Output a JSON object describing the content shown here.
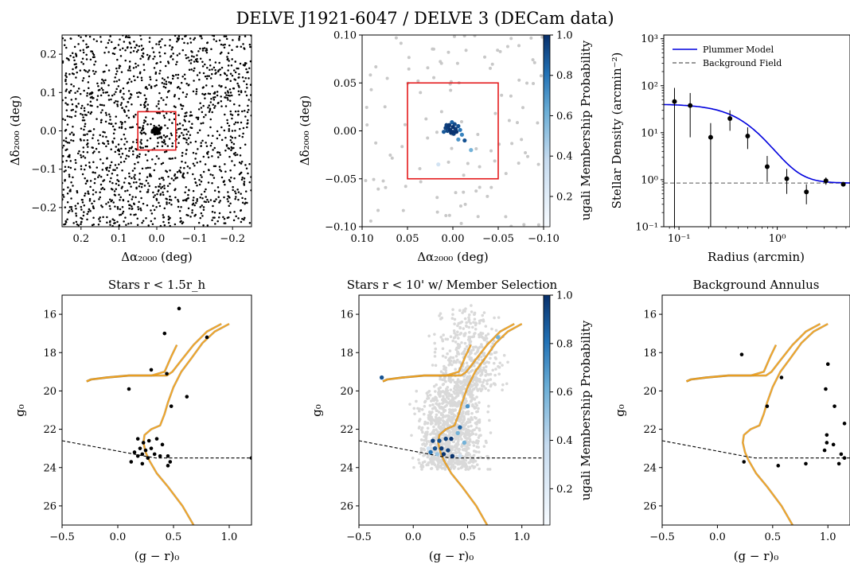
{
  "figure": {
    "title": "DELVE J1921-6047 / DELVE 3 (DECam data)",
    "colors": {
      "axis": "#000000",
      "member_box": "#e41a1c",
      "isochrone": "#f5a623",
      "isochrone_edge": "#8a5a00",
      "plummer": "#0000dd",
      "background_line": "#777777",
      "field_gray": "#c8c8c8",
      "cmap_low": "#f7fbff",
      "cmap_high": "#08306b"
    }
  },
  "chart_data": [
    {
      "id": "spatial_all",
      "type": "scatter",
      "title": "",
      "xlabel": "Δα₂₀₀₀ (deg)",
      "ylabel": "Δδ₂₀₀₀ (deg)",
      "xlim": [
        0.25,
        -0.25
      ],
      "ylim": [
        -0.25,
        0.25
      ],
      "xticks": [
        0.2,
        0.1,
        0.0,
        -0.1,
        -0.2
      ],
      "xticklabels": [
        "0.2",
        "0.1",
        "0.0",
        "−0.1",
        "−0.2"
      ],
      "yticks": [
        -0.2,
        -0.1,
        0.0,
        0.1,
        0.2
      ],
      "yticklabels": [
        "−0.2",
        "−0.1",
        "0.0",
        "0.1",
        "0.2"
      ],
      "box": [
        0.05,
        -0.05,
        -0.05,
        0.05
      ],
      "field_points": 1600,
      "cluster_points": [
        [
          0.0,
          0.0
        ],
        [
          0.004,
          0.003
        ],
        [
          -0.003,
          0.005
        ],
        [
          0.006,
          -0.004
        ],
        [
          -0.005,
          -0.002
        ],
        [
          0.002,
          0.008
        ],
        [
          -0.008,
          0.004
        ],
        [
          0.009,
          0.002
        ],
        [
          -0.002,
          -0.007
        ],
        [
          0.003,
          -0.001
        ],
        [
          0.0,
          0.004
        ],
        [
          -0.004,
          0.0
        ],
        [
          0.007,
          0.006
        ],
        [
          0.005,
          -0.008
        ],
        [
          -0.007,
          -0.006
        ],
        [
          0.012,
          -0.003
        ],
        [
          -0.011,
          0.008
        ]
      ]
    },
    {
      "id": "spatial_members",
      "type": "scatter",
      "title": "",
      "xlabel": "Δα₂₀₀₀ (deg)",
      "ylabel": "Δδ₂₀₀₀ (deg)",
      "xlim": [
        0.1,
        -0.1
      ],
      "ylim": [
        -0.1,
        0.1
      ],
      "xticks": [
        0.1,
        0.05,
        0.0,
        -0.05,
        -0.1
      ],
      "xticklabels": [
        "0.10",
        "0.05",
        "0.00",
        "−0.05",
        "−0.10"
      ],
      "yticks": [
        -0.1,
        -0.05,
        0.0,
        0.05,
        0.1
      ],
      "yticklabels": [
        "−0.10",
        "−0.05",
        "0.00",
        "0.05",
        "0.10"
      ],
      "box": [
        0.05,
        -0.05,
        -0.05,
        0.05
      ],
      "background_points": 110,
      "members": [
        {
          "x": 0.008,
          "y": 0.003,
          "p": 0.95
        },
        {
          "x": 0.004,
          "y": 0.006,
          "p": 0.98
        },
        {
          "x": 0.0,
          "y": 0.004,
          "p": 0.99
        },
        {
          "x": -0.003,
          "y": 0.002,
          "p": 0.97
        },
        {
          "x": -0.006,
          "y": 0.005,
          "p": 0.9
        },
        {
          "x": 0.006,
          "y": 0.0,
          "p": 0.93
        },
        {
          "x": 0.002,
          "y": -0.002,
          "p": 0.99
        },
        {
          "x": -0.001,
          "y": -0.003,
          "p": 0.96
        },
        {
          "x": 0.01,
          "y": -0.001,
          "p": 0.88
        },
        {
          "x": -0.004,
          "y": -0.001,
          "p": 0.99
        },
        {
          "x": 0.001,
          "y": 0.009,
          "p": 0.85
        },
        {
          "x": 0.005,
          "y": 0.004,
          "p": 0.97
        },
        {
          "x": -0.002,
          "y": 0.007,
          "p": 0.92
        },
        {
          "x": 0.003,
          "y": 0.001,
          "p": 0.99
        },
        {
          "x": -0.008,
          "y": 0.001,
          "p": 0.8
        },
        {
          "x": 0.007,
          "y": 0.006,
          "p": 0.95
        },
        {
          "x": -0.01,
          "y": -0.004,
          "p": 0.75
        },
        {
          "x": -0.006,
          "y": -0.009,
          "p": 0.7
        },
        {
          "x": -0.02,
          "y": -0.02,
          "p": 0.6
        },
        {
          "x": 0.016,
          "y": -0.035,
          "p": 0.3
        },
        {
          "x": 0.0,
          "y": -0.001,
          "p": 0.99
        },
        {
          "x": -0.013,
          "y": -0.01,
          "p": 0.9
        }
      ],
      "colorbar": {
        "label": "ugali Membership Probability",
        "range": [
          0.05,
          1.0
        ],
        "ticks": [
          0.2,
          0.4,
          0.6,
          0.8,
          1.0
        ],
        "ticklabels": [
          "0.2",
          "0.4",
          "0.6",
          "0.8",
          "1.0"
        ]
      }
    },
    {
      "id": "radial_profile",
      "type": "line",
      "title": "",
      "xlabel": "Radius (arcmin)",
      "ylabel": "Stellar Density (arcmin⁻²)",
      "xscale": "log",
      "yscale": "log",
      "xlim": [
        0.07,
        5.5
      ],
      "ylim": [
        0.1,
        1200
      ],
      "xticks": [
        0.1,
        1.0
      ],
      "xticklabels": [
        "10⁻¹",
        "10⁰"
      ],
      "yticks": [
        0.1,
        1,
        10,
        100,
        1000
      ],
      "yticklabels": [
        "10⁻¹",
        "10⁰",
        "10¹",
        "10²",
        "10³"
      ],
      "legend": {
        "placement": "top-left",
        "entries": [
          "Plummer Model",
          "Background Field"
        ]
      },
      "plummer": {
        "background": 0.85,
        "central": 40,
        "half_light_radius": 0.6
      },
      "points": [
        {
          "r": 0.09,
          "d": 46,
          "lo": 0.1,
          "hi": 90
        },
        {
          "r": 0.13,
          "d": 38,
          "lo": 8,
          "hi": 70
        },
        {
          "r": 0.21,
          "d": 8,
          "lo": 0.1,
          "hi": 16
        },
        {
          "r": 0.33,
          "d": 20,
          "lo": 11,
          "hi": 30
        },
        {
          "r": 0.5,
          "d": 8.5,
          "lo": 4.5,
          "hi": 13
        },
        {
          "r": 0.79,
          "d": 1.9,
          "lo": 0.9,
          "hi": 3.2
        },
        {
          "r": 1.25,
          "d": 1.05,
          "lo": 0.5,
          "hi": 1.7
        },
        {
          "r": 1.98,
          "d": 0.55,
          "lo": 0.3,
          "hi": 0.8
        },
        {
          "r": 3.13,
          "d": 0.95,
          "lo": 0.78,
          "hi": 1.12
        },
        {
          "r": 4.7,
          "d": 0.8,
          "lo": 0.72,
          "hi": 0.88
        }
      ]
    },
    {
      "id": "cmd_inner",
      "type": "scatter",
      "title": "Stars r < 1.5r_h",
      "xlabel": "(g − r)₀",
      "ylabel": "g₀",
      "xlim": [
        -0.5,
        1.2
      ],
      "ylim": [
        27,
        15
      ],
      "xticks": [
        -0.5,
        0.0,
        0.5,
        1.0
      ],
      "xticklabels": [
        "−0.5",
        "0.0",
        "0.5",
        "1.0"
      ],
      "yticks": [
        16,
        18,
        20,
        22,
        24,
        26
      ],
      "yticklabels": [
        "16",
        "18",
        "20",
        "22",
        "24",
        "26"
      ],
      "stars": [
        [
          0.55,
          15.7
        ],
        [
          0.42,
          17.0
        ],
        [
          0.8,
          17.2
        ],
        [
          0.3,
          18.9
        ],
        [
          0.44,
          19.1
        ],
        [
          0.1,
          19.9
        ],
        [
          0.62,
          20.3
        ],
        [
          0.48,
          20.8
        ],
        [
          0.18,
          22.5
        ],
        [
          0.23,
          22.7
        ],
        [
          0.28,
          22.6
        ],
        [
          0.35,
          22.5
        ],
        [
          0.4,
          22.8
        ],
        [
          0.2,
          23.0
        ],
        [
          0.25,
          23.1
        ],
        [
          0.3,
          23.0
        ],
        [
          0.15,
          23.2
        ],
        [
          0.22,
          23.3
        ],
        [
          0.33,
          23.3
        ],
        [
          0.38,
          23.4
        ],
        [
          0.45,
          23.4
        ],
        [
          0.27,
          23.5
        ],
        [
          0.12,
          23.7
        ],
        [
          0.22,
          23.8
        ],
        [
          0.47,
          23.7
        ],
        [
          0.45,
          23.9
        ],
        [
          1.2,
          23.5
        ],
        [
          0.18,
          23.4
        ]
      ]
    },
    {
      "id": "cmd_members",
      "type": "scatter",
      "title": "Stars r < 10' w/ Member Selection",
      "xlabel": "(g − r)₀",
      "ylabel": "g₀",
      "xlim": [
        -0.5,
        1.2
      ],
      "ylim": [
        27,
        15
      ],
      "xticks": [
        -0.5,
        0.0,
        0.5,
        1.0
      ],
      "xticklabels": [
        "−0.5",
        "0.0",
        "0.5",
        "1.0"
      ],
      "yticks": [
        16,
        18,
        20,
        22,
        24,
        26
      ],
      "yticklabels": [
        "16",
        "18",
        "20",
        "22",
        "24",
        "26"
      ],
      "background_points": 1400,
      "members": [
        {
          "x": -0.29,
          "y": 19.3,
          "p": 0.9
        },
        {
          "x": 0.78,
          "y": 17.2,
          "p": 0.6
        },
        {
          "x": 0.5,
          "y": 20.8,
          "p": 0.7
        },
        {
          "x": 0.43,
          "y": 21.9,
          "p": 0.85
        },
        {
          "x": 0.41,
          "y": 22.2,
          "p": 0.6
        },
        {
          "x": 0.18,
          "y": 22.6,
          "p": 0.95
        },
        {
          "x": 0.24,
          "y": 22.6,
          "p": 0.9
        },
        {
          "x": 0.3,
          "y": 22.5,
          "p": 0.95
        },
        {
          "x": 0.35,
          "y": 22.5,
          "p": 0.98
        },
        {
          "x": 0.47,
          "y": 22.7,
          "p": 0.6
        },
        {
          "x": 0.2,
          "y": 23.0,
          "p": 0.9
        },
        {
          "x": 0.26,
          "y": 23.0,
          "p": 0.97
        },
        {
          "x": 0.32,
          "y": 23.1,
          "p": 0.95
        },
        {
          "x": 0.16,
          "y": 23.2,
          "p": 0.8
        },
        {
          "x": 0.22,
          "y": 23.3,
          "p": 0.5
        },
        {
          "x": 0.28,
          "y": 23.3,
          "p": 0.99
        },
        {
          "x": 0.36,
          "y": 23.4,
          "p": 0.99
        },
        {
          "x": 0.14,
          "y": 23.0,
          "p": 0.3
        },
        {
          "x": 0.43,
          "y": 23.4,
          "p": 0.35
        }
      ],
      "colorbar": {
        "label": "ugali Membership Probability",
        "range": [
          0.05,
          1.0
        ],
        "ticks": [
          0.2,
          0.4,
          0.6,
          0.8,
          1.0
        ],
        "ticklabels": [
          "0.2",
          "0.4",
          "0.6",
          "0.8",
          "1.0"
        ]
      }
    },
    {
      "id": "cmd_background",
      "type": "scatter",
      "title": "Background Annulus",
      "xlabel": "(g − r)₀",
      "ylabel": "g₀",
      "xlim": [
        -0.5,
        1.2
      ],
      "ylim": [
        27,
        15
      ],
      "xticks": [
        -0.5,
        0.0,
        0.5,
        1.0
      ],
      "xticklabels": [
        "−0.5",
        "0.0",
        "0.5",
        "1.0"
      ],
      "yticks": [
        16,
        18,
        20,
        22,
        24,
        26
      ],
      "yticklabels": [
        "16",
        "18",
        "20",
        "22",
        "24",
        "26"
      ],
      "stars": [
        [
          0.22,
          18.1
        ],
        [
          0.58,
          19.3
        ],
        [
          1.0,
          18.6
        ],
        [
          0.98,
          19.9
        ],
        [
          0.45,
          20.8
        ],
        [
          1.06,
          20.8
        ],
        [
          0.99,
          22.3
        ],
        [
          1.15,
          21.7
        ],
        [
          0.99,
          22.7
        ],
        [
          1.05,
          22.8
        ],
        [
          0.97,
          23.1
        ],
        [
          1.12,
          23.3
        ],
        [
          1.1,
          23.8
        ],
        [
          0.8,
          23.8
        ],
        [
          0.55,
          23.9
        ],
        [
          0.24,
          23.7
        ],
        [
          1.15,
          23.5
        ]
      ]
    }
  ],
  "isochrone": {
    "lower": [
      [
        0.7,
        27.2
      ],
      [
        0.58,
        26.0
      ],
      [
        0.45,
        25.0
      ],
      [
        0.35,
        24.3
      ],
      [
        0.28,
        23.6
      ],
      [
        0.25,
        23.2
      ],
      [
        0.23,
        22.7
      ],
      [
        0.24,
        22.3
      ],
      [
        0.3,
        22.0
      ],
      [
        0.38,
        21.8
      ],
      [
        0.42,
        21.2
      ],
      [
        0.45,
        20.6
      ],
      [
        0.5,
        19.8
      ],
      [
        0.57,
        19.0
      ],
      [
        0.66,
        18.3
      ],
      [
        0.76,
        17.5
      ],
      [
        0.87,
        16.9
      ],
      [
        1.0,
        16.5
      ]
    ],
    "upper": [
      [
        0.93,
        16.5
      ],
      [
        0.8,
        16.9
      ],
      [
        0.68,
        17.6
      ],
      [
        0.57,
        18.4
      ],
      [
        0.49,
        19.0
      ],
      [
        0.44,
        19.2
      ],
      [
        0.3,
        19.2
      ],
      [
        0.1,
        19.2
      ],
      [
        -0.1,
        19.3
      ],
      [
        -0.24,
        19.4
      ],
      [
        -0.28,
        19.5
      ]
    ],
    "agb": [
      [
        -0.28,
        19.5
      ],
      [
        -0.24,
        19.4
      ],
      [
        -0.1,
        19.3
      ],
      [
        0.1,
        19.2
      ],
      [
        0.3,
        19.2
      ],
      [
        0.42,
        19.0
      ],
      [
        0.48,
        18.2
      ],
      [
        0.53,
        17.6
      ]
    ]
  },
  "completeness": [
    [
      -0.5,
      22.6
    ],
    [
      0.24,
      23.4
    ],
    [
      0.34,
      23.5
    ],
    [
      1.2,
      23.5
    ]
  ]
}
